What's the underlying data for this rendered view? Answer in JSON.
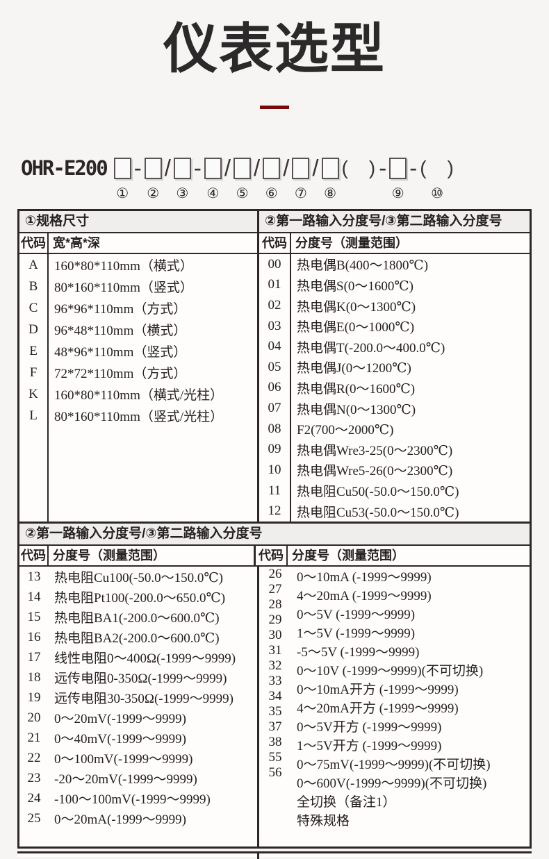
{
  "page": {
    "title": "仪表选型"
  },
  "model": {
    "prefix": "OHR-E200",
    "segments": [
      {
        "sym": "box",
        "num": "①"
      },
      {
        "sym": "-",
        "num": ""
      },
      {
        "sym": "box",
        "num": "②"
      },
      {
        "sym": "/",
        "num": ""
      },
      {
        "sym": "box",
        "num": "③"
      },
      {
        "sym": "-",
        "num": ""
      },
      {
        "sym": "box",
        "num": "④"
      },
      {
        "sym": "/",
        "num": ""
      },
      {
        "sym": "box",
        "num": "⑤"
      },
      {
        "sym": "/",
        "num": ""
      },
      {
        "sym": "box",
        "num": "⑥"
      },
      {
        "sym": "/",
        "num": ""
      },
      {
        "sym": "box",
        "num": "⑦"
      },
      {
        "sym": "/",
        "num": ""
      },
      {
        "sym": "box",
        "num": "⑧"
      },
      {
        "sym": "(　)",
        "num": ""
      },
      {
        "sym": "-",
        "num": ""
      },
      {
        "sym": "box",
        "num": "⑨"
      },
      {
        "sym": "-",
        "num": ""
      },
      {
        "sym": "(　)",
        "num": "⑩"
      }
    ]
  },
  "section1": {
    "left": {
      "header": "①规格尺寸",
      "columns": {
        "code": "代码",
        "desc": "宽*高*深"
      },
      "rows": [
        {
          "code": "A",
          "desc": "160*80*110mm（横式）"
        },
        {
          "code": "B",
          "desc": "80*160*110mm（竖式）"
        },
        {
          "code": "C",
          "desc": "96*96*110mm（方式）"
        },
        {
          "code": "D",
          "desc": "96*48*110mm（横式）"
        },
        {
          "code": "E",
          "desc": "48*96*110mm（竖式）"
        },
        {
          "code": "F",
          "desc": "72*72*110mm（方式）"
        },
        {
          "code": "K",
          "desc": "160*80*110mm（横式/光柱）"
        },
        {
          "code": "L",
          "desc": "80*160*110mm（竖式/光柱）"
        }
      ]
    },
    "right": {
      "header": "②第一路输入分度号/③第二路输入分度号",
      "columns": {
        "code": "代码",
        "desc": "分度号（测量范围）"
      },
      "rows": [
        {
          "code": "00",
          "desc": "热电偶B(400～1800℃)"
        },
        {
          "code": "01",
          "desc": "热电偶S(0～1600℃)"
        },
        {
          "code": "02",
          "desc": "热电偶K(0～1300℃)"
        },
        {
          "code": "03",
          "desc": "热电偶E(0～1000℃)"
        },
        {
          "code": "04",
          "desc": "热电偶T(-200.0～400.0℃)"
        },
        {
          "code": "05",
          "desc": "热电偶J(0～1200℃)"
        },
        {
          "code": "06",
          "desc": "热电偶R(0～1600℃)"
        },
        {
          "code": "07",
          "desc": "热电偶N(0～1300℃)"
        },
        {
          "code": "08",
          "desc": "F2(700～2000℃)"
        },
        {
          "code": "09",
          "desc": "热电偶Wre3-25(0～2300℃)"
        },
        {
          "code": "10",
          "desc": "热电偶Wre5-26(0～2300℃)"
        },
        {
          "code": "11",
          "desc": "热电阻Cu50(-50.0～150.0℃)"
        },
        {
          "code": "12",
          "desc": "热电阻Cu53(-50.0～150.0℃)"
        }
      ]
    }
  },
  "section2": {
    "header": "②第一路输入分度号/③第二路输入分度号",
    "left": {
      "columns": {
        "code": "代码",
        "desc": "分度号（测量范围）"
      },
      "rows": [
        {
          "code": "13",
          "desc": "热电阻Cu100(-50.0～150.0℃)"
        },
        {
          "code": "14",
          "desc": "热电阻Pt100(-200.0～650.0℃)"
        },
        {
          "code": "15",
          "desc": "热电阻BA1(-200.0～600.0℃)"
        },
        {
          "code": "16",
          "desc": "热电阻BA2(-200.0～600.0℃)"
        },
        {
          "code": "17",
          "desc": "线性电阻0～400Ω(-1999～9999)"
        },
        {
          "code": "18",
          "desc": "远传电阻0-350Ω(-1999～9999)"
        },
        {
          "code": "19",
          "desc": "远传电阻30-350Ω(-1999～9999)"
        },
        {
          "code": "20",
          "desc": "0～20mV(-1999～9999)"
        },
        {
          "code": "21",
          "desc": "0～40mV(-1999～9999)"
        },
        {
          "code": "22",
          "desc": "0～100mV(-1999～9999)"
        },
        {
          "code": "23",
          "desc": "-20～20mV(-1999～9999)"
        },
        {
          "code": "24",
          "desc": "-100～100mV(-1999～9999)"
        },
        {
          "code": "25",
          "desc": "0～20mA(-1999～9999)"
        }
      ]
    },
    "right": {
      "columns": {
        "code": "代码",
        "desc": "分度号（测量范围）"
      },
      "rows": [
        {
          "code": "26",
          "desc": "0～10mA (-1999～9999)"
        },
        {
          "code": "27",
          "desc": "4～20mA (-1999～9999)"
        },
        {
          "code": "28",
          "desc": "0～5V (-1999～9999)"
        },
        {
          "code": "29",
          "desc": "1～5V (-1999～9999)"
        },
        {
          "code": "30",
          "desc": "-5～5V (-1999～9999)"
        },
        {
          "code": "31",
          "desc": "0～10V (-1999～9999)(不可切换)"
        },
        {
          "code": "32",
          "desc": "0～10mA开方 (-1999～9999)"
        },
        {
          "code": "33",
          "desc": "4～20mA开方 (-1999～9999)"
        },
        {
          "code": "34",
          "desc": "0～5V开方 (-1999～9999)"
        },
        {
          "code": "35",
          "desc": "1～5V开方 (-1999～9999)"
        },
        {
          "code": "37",
          "desc": "0～75mV(-1999～9999)(不可切换)"
        },
        {
          "code": "38",
          "desc": "0～600V(-1999～9999)(不可切换)"
        },
        {
          "code": "55",
          "desc": "全切换（备注1）"
        },
        {
          "code": "56",
          "desc": "特殊规格"
        }
      ]
    }
  },
  "colors": {
    "accent_red": "#7a0a0a",
    "border": "#2e2727",
    "header_bg": "#efeeec",
    "page_bg": "#f6f5f3",
    "text": "#262020"
  }
}
